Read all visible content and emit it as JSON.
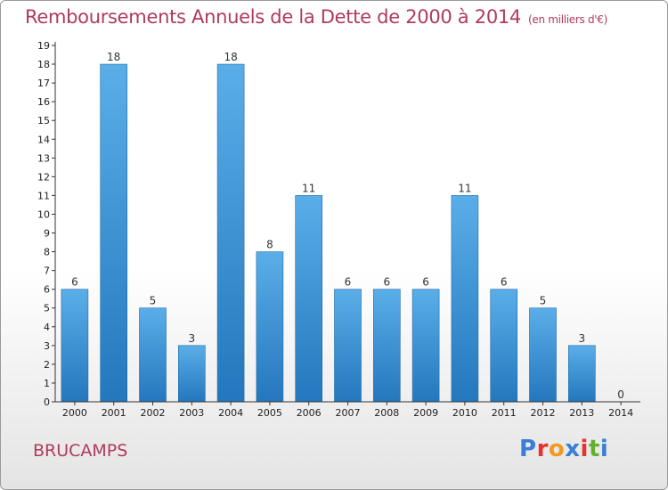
{
  "header": {
    "title": "Remboursements Annuels de la Dette de 2000 à 2014",
    "subtitle": "(en milliers d'€)"
  },
  "footer": {
    "commune": "BRUCAMPS",
    "logo": "Proxiti",
    "logo_colors": [
      "#3a7fd5",
      "#e5322c",
      "#f19a1f",
      "#3a7fd5",
      "#e5322c",
      "#62b030",
      "#3a7fd5"
    ]
  },
  "colors": {
    "title": "#b03a5b",
    "bar_light": "#5aaee8",
    "bar_dark": "#2477bd",
    "axis": "#333333"
  },
  "chart_data": {
    "type": "bar",
    "title": "Remboursements Annuels de la Dette de 2000 à 2014",
    "subtitle": "(en milliers d'€)",
    "xlabel": "",
    "ylabel": "",
    "categories": [
      "2000",
      "2001",
      "2002",
      "2003",
      "2004",
      "2005",
      "2006",
      "2007",
      "2008",
      "2009",
      "2010",
      "2011",
      "2012",
      "2013",
      "2014"
    ],
    "values": [
      6,
      18,
      5,
      3,
      18,
      8,
      11,
      6,
      6,
      6,
      11,
      6,
      5,
      3,
      0
    ],
    "data_labels": [
      "6",
      "18",
      "5",
      "3",
      "18",
      "8",
      "11",
      "6",
      "6",
      "6",
      "11",
      "6",
      "5",
      "3",
      "0"
    ],
    "y_ticks": [
      0,
      1,
      2,
      3,
      4,
      5,
      6,
      7,
      8,
      9,
      10,
      11,
      12,
      13,
      14,
      15,
      16,
      17,
      18,
      19
    ],
    "ylim": [
      0,
      19
    ],
    "grid": false,
    "legend": "none"
  }
}
